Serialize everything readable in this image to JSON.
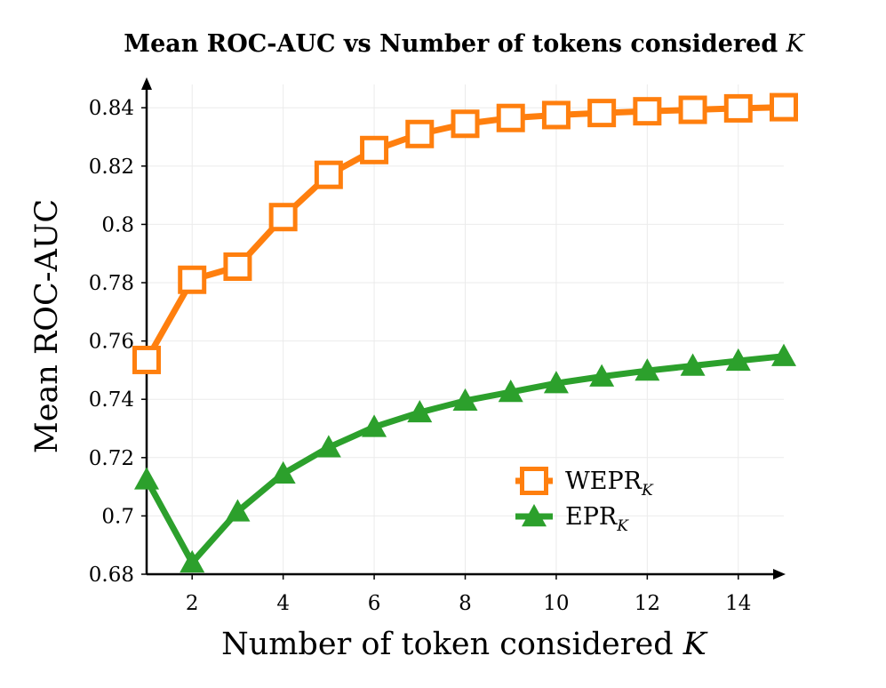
{
  "chart_data": {
    "type": "line",
    "title": "Mean ROC-AUC vs Number of tokens considered",
    "title_var": "K",
    "xlabel": "Number of token considered",
    "xlabel_var": "K",
    "ylabel": "Mean ROC-AUC",
    "xlim": [
      1,
      15
    ],
    "ylim": [
      0.68,
      0.848
    ],
    "grid": true,
    "legend_position": "lower-right",
    "x_ticks": [
      {
        "value": 2,
        "label": "2"
      },
      {
        "value": 4,
        "label": "4"
      },
      {
        "value": 6,
        "label": "6"
      },
      {
        "value": 8,
        "label": "8"
      },
      {
        "value": 10,
        "label": "10"
      },
      {
        "value": 12,
        "label": "12"
      },
      {
        "value": 14,
        "label": "14"
      }
    ],
    "y_ticks": [
      {
        "value": 0.68,
        "label": "0.68"
      },
      {
        "value": 0.7,
        "label": "0.7"
      },
      {
        "value": 0.72,
        "label": "0.72"
      },
      {
        "value": 0.74,
        "label": "0.74"
      },
      {
        "value": 0.76,
        "label": "0.76"
      },
      {
        "value": 0.78,
        "label": "0.78"
      },
      {
        "value": 0.8,
        "label": "0.8"
      },
      {
        "value": 0.82,
        "label": "0.82"
      },
      {
        "value": 0.84,
        "label": "0.84"
      }
    ],
    "x": [
      1,
      2,
      3,
      4,
      5,
      6,
      7,
      8,
      9,
      10,
      11,
      12,
      13,
      14,
      15
    ],
    "series": [
      {
        "name": "WEPR",
        "name_sub": "K",
        "color": "#ff7f0e",
        "marker": "square",
        "values": [
          0.7535,
          0.781,
          0.7855,
          0.8025,
          0.817,
          0.8255,
          0.831,
          0.8345,
          0.8365,
          0.8375,
          0.8382,
          0.8388,
          0.8393,
          0.8398,
          0.8402
        ]
      },
      {
        "name": "EPR",
        "name_sub": "K",
        "color": "#2ca02c",
        "marker": "triangle",
        "values": [
          0.7125,
          0.684,
          0.7015,
          0.7145,
          0.7235,
          0.7305,
          0.7355,
          0.7395,
          0.7425,
          0.7455,
          0.7478,
          0.7498,
          0.7515,
          0.7532,
          0.7548
        ]
      }
    ]
  }
}
